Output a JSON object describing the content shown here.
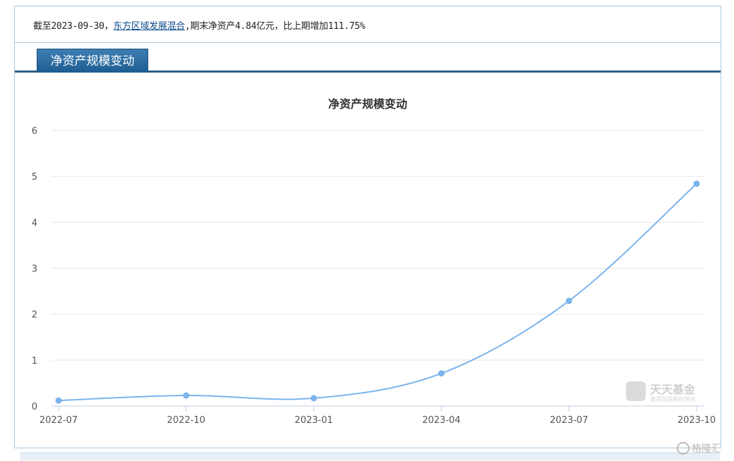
{
  "summary": {
    "prefix": "截至2023-09-30，",
    "fund_name": "东方区域发展混合",
    "suffix": ",期末净资产4.84亿元，比上期增加111.75%"
  },
  "tab": {
    "label": "净资产规模变动"
  },
  "chart_data": {
    "type": "line",
    "title": "净资产规模变动",
    "categories": [
      "2022-07",
      "2022-10",
      "2023-01",
      "2023-04",
      "2023-07",
      "2023-10"
    ],
    "values": [
      0.12,
      0.23,
      0.17,
      0.71,
      2.29,
      4.84
    ],
    "ylim": [
      0,
      6
    ],
    "yticks": [
      "0",
      "1",
      "2",
      "3",
      "4",
      "5",
      "6"
    ],
    "xlabel": "",
    "ylabel": "",
    "grid": true,
    "legend": "none",
    "line_color": "#7cb5ec"
  },
  "logo": {
    "name": "天天基金",
    "slogan": "值得您信赖的理财"
  },
  "watermark": {
    "text": "格隆汇"
  }
}
